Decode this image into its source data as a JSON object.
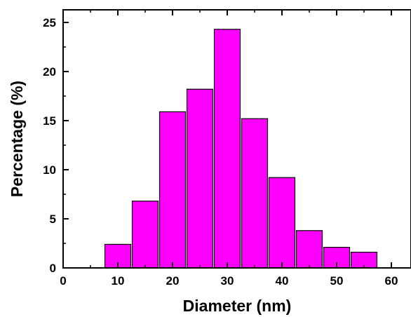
{
  "chart_data": {
    "type": "bar",
    "title": "",
    "xlabel": "Diameter (nm)",
    "ylabel": "Percentage (%)",
    "xlim": [
      0,
      65
    ],
    "ylim": [
      0,
      26
    ],
    "x_ticks": [
      0,
      10,
      20,
      30,
      40,
      50,
      60
    ],
    "y_ticks": [
      0,
      5,
      10,
      15,
      20,
      25
    ],
    "bin_width": 5,
    "x": [
      10,
      15,
      20,
      25,
      30,
      35,
      40,
      45,
      50,
      55
    ],
    "values": [
      2.4,
      6.8,
      15.9,
      18.2,
      24.3,
      15.2,
      9.2,
      3.8,
      2.1,
      1.6
    ],
    "bar_color": "#ff00ff",
    "grid": false,
    "legend": "none"
  }
}
